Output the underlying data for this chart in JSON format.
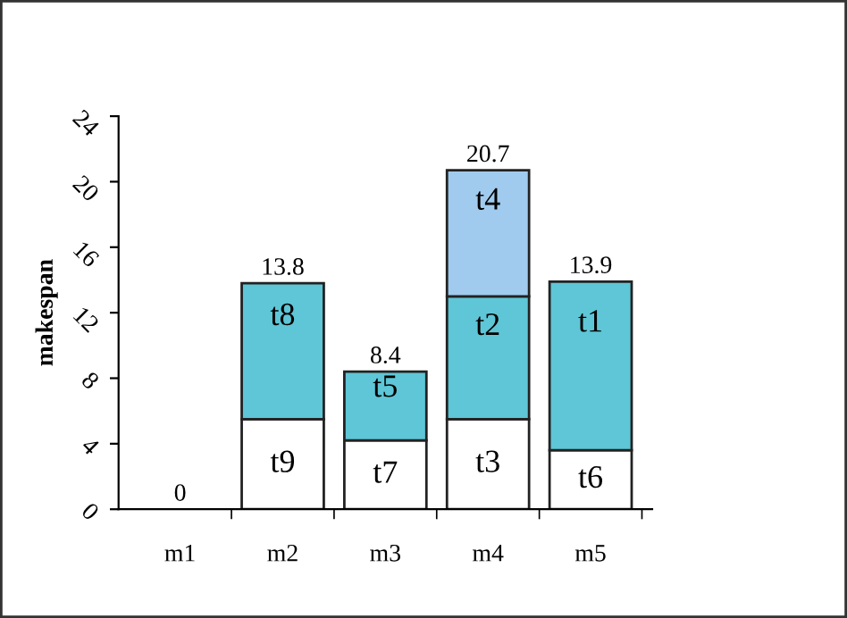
{
  "chart_data": {
    "type": "bar",
    "stacked": true,
    "ylabel": "makespan",
    "categories": [
      "m1",
      "m2",
      "m3",
      "m4",
      "m5"
    ],
    "series": [
      {
        "color": "#ffffff",
        "values": [
          null,
          5.5,
          4.2,
          5.5,
          3.6
        ],
        "value_labels": [
          null,
          "t9",
          "t7",
          "t3",
          "t6"
        ]
      },
      {
        "color": "#5ec6d6",
        "values": [
          null,
          8.3,
          4.2,
          7.5,
          10.3
        ],
        "value_labels": [
          null,
          "t8",
          "t5",
          "t2",
          "t1"
        ]
      },
      {
        "color": "#a0cbee",
        "values": [
          null,
          null,
          null,
          7.7,
          null
        ],
        "value_labels": [
          null,
          null,
          null,
          "t4",
          null
        ]
      }
    ],
    "totals": [
      "0",
      "13.8",
      "8.4",
      "20.7",
      "13.9"
    ],
    "ylim": [
      0,
      24
    ],
    "yticks": [
      0,
      4,
      8,
      12,
      16,
      20,
      24
    ],
    "grid": false
  }
}
